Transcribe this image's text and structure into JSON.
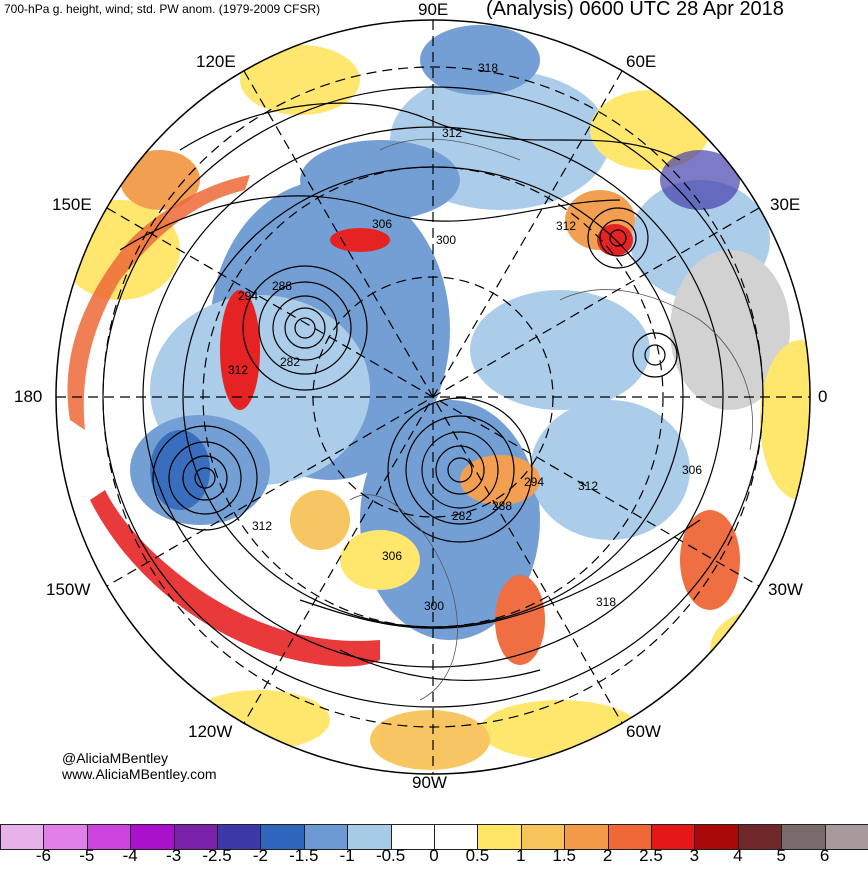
{
  "header": {
    "left_title": "700-hPa g. height, wind; std. PW anom. (1979-2009 CFSR)",
    "right_title": "(Analysis) 0600 UTC 28 Apr 2018"
  },
  "credits": {
    "handle": "@AliciaMBentley",
    "website": "www.AliciaMBentley.com"
  },
  "longitude_labels": {
    "e90": "90E",
    "e120": "120E",
    "e60": "60E",
    "e150": "150E",
    "e30": "30E",
    "d180": "180",
    "d0": "0",
    "w150": "150W",
    "w30": "30W",
    "w120": "120W",
    "w60": "60W",
    "w90": "90W"
  },
  "contour_labels": [
    "318",
    "312",
    "306",
    "300",
    "312",
    "294",
    "288",
    "282",
    "312",
    "306",
    "312",
    "294",
    "288",
    "282",
    "306",
    "300",
    "318",
    "312"
  ],
  "colorbar": {
    "ticks": [
      "-6",
      "-5",
      "-4",
      "-3",
      "-2.5",
      "-2",
      "-1.5",
      "-1",
      "-0.5",
      "0",
      "0.5",
      "1",
      "1.5",
      "2",
      "2.5",
      "3",
      "4",
      "5",
      "6"
    ],
    "colors": [
      "#e8b0e8",
      "#e080e8",
      "#cc44dd",
      "#aa11cc",
      "#7a22aa",
      "#3c38a8",
      "#2f66bb",
      "#6d9ad2",
      "#a8cbe8",
      "#ffffff",
      "#ffffff",
      "#ffe566",
      "#f7c45a",
      "#f39a48",
      "#ef6838",
      "#e41818",
      "#a80808",
      "#70282a",
      "#7a6a6a",
      "#a89a9a"
    ]
  }
}
